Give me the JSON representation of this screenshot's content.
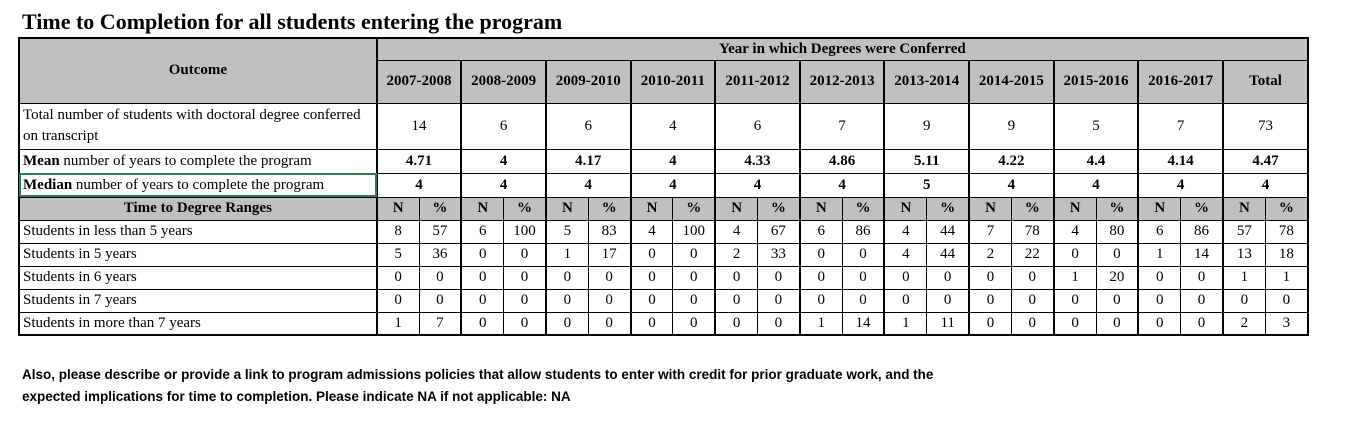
{
  "title": "Time to Completion for all students entering the program",
  "header": {
    "outcome": "Outcome",
    "group": "Year in which Degrees were Conferred",
    "years": [
      "2007-2008",
      "2008-2009",
      "2009-2010",
      "2010-2011",
      "2011-2012",
      "2012-2013",
      "2013-2014",
      "2014-2015",
      "2015-2016",
      "2016-2017",
      "Total"
    ]
  },
  "summary_rows": [
    {
      "label": "Total number of students with doctoral degree conferred on transcript",
      "bold_prefix": "",
      "rest": "Total number of students with doctoral degree conferred on transcript",
      "values": [
        "14",
        "6",
        "6",
        "4",
        "6",
        "7",
        "9",
        "9",
        "5",
        "7",
        "73"
      ],
      "bold_values": false
    },
    {
      "label": "Mean number of years to complete the program",
      "bold_prefix": "Mean",
      "rest": " number of years to complete the program",
      "values": [
        "4.71",
        "4",
        "4.17",
        "4",
        "4.33",
        "4.86",
        "5.11",
        "4.22",
        "4.4",
        "4.14",
        "4.47"
      ],
      "bold_values": true
    },
    {
      "label": "Median number of years to complete the program",
      "bold_prefix": "Median",
      "rest": " number of years to complete the program",
      "values": [
        "4",
        "4",
        "4",
        "4",
        "4",
        "4",
        "5",
        "4",
        "4",
        "4",
        "4"
      ],
      "bold_values": true
    }
  ],
  "ranges": {
    "label": "Time to Degree Ranges",
    "n": "N",
    "pct": "%",
    "rows": [
      {
        "label": "Students in less than 5 years",
        "values": [
          "8",
          "57",
          "6",
          "100",
          "5",
          "83",
          "4",
          "100",
          "4",
          "67",
          "6",
          "86",
          "4",
          "44",
          "7",
          "78",
          "4",
          "80",
          "6",
          "86",
          "57",
          "78"
        ]
      },
      {
        "label": "Students in 5 years",
        "values": [
          "5",
          "36",
          "0",
          "0",
          "1",
          "17",
          "0",
          "0",
          "2",
          "33",
          "0",
          "0",
          "4",
          "44",
          "2",
          "22",
          "0",
          "0",
          "1",
          "14",
          "13",
          "18"
        ]
      },
      {
        "label": "Students in 6 years",
        "values": [
          "0",
          "0",
          "0",
          "0",
          "0",
          "0",
          "0",
          "0",
          "0",
          "0",
          "0",
          "0",
          "0",
          "0",
          "0",
          "0",
          "1",
          "20",
          "0",
          "0",
          "1",
          "1"
        ]
      },
      {
        "label": "Students in 7 years",
        "values": [
          "0",
          "0",
          "0",
          "0",
          "0",
          "0",
          "0",
          "0",
          "0",
          "0",
          "0",
          "0",
          "0",
          "0",
          "0",
          "0",
          "0",
          "0",
          "0",
          "0",
          "0",
          "0"
        ]
      },
      {
        "label": "Students in more than 7 years",
        "values": [
          "1",
          "7",
          "0",
          "0",
          "0",
          "0",
          "0",
          "0",
          "0",
          "0",
          "1",
          "14",
          "1",
          "11",
          "0",
          "0",
          "0",
          "0",
          "0",
          "0",
          "2",
          "3"
        ]
      }
    ]
  },
  "footnote": {
    "line1": "Also, please describe or provide a link to program admissions policies that allow students to enter  with credit for prior graduate work, and the",
    "line2": "expected implications for time to completion. Please indicate NA if not applicable:  NA"
  }
}
